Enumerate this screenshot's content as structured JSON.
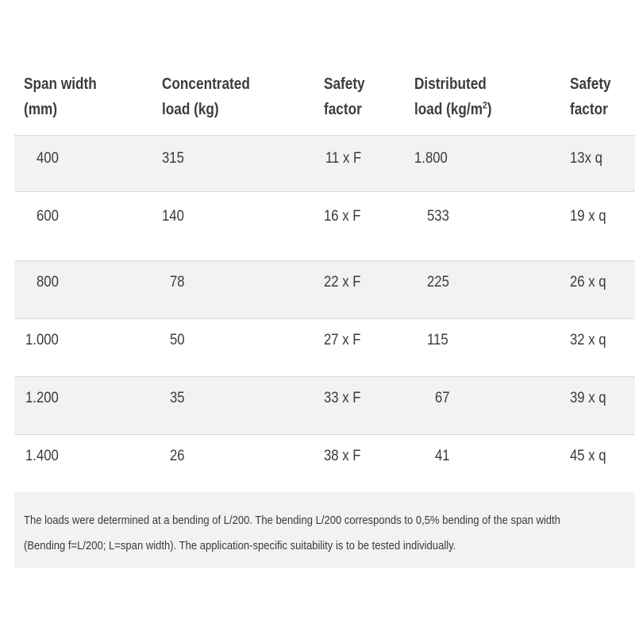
{
  "table": {
    "headers": {
      "span_width": [
        "Span width",
        "(mm)"
      ],
      "concentrated_load": [
        "Concentrated",
        "load (kg)"
      ],
      "safety_factor_1": [
        "Safety",
        "factor"
      ],
      "distributed_load": [
        "Distributed",
        "load (kg/m",
        "2",
        ")"
      ],
      "safety_factor_2": [
        "Safety",
        "factor"
      ]
    },
    "rows": [
      {
        "span": "400",
        "conc": "315",
        "sf1": "11 x F",
        "dist": "1.800",
        "sf2": "13x q"
      },
      {
        "span": "600",
        "conc": "140",
        "sf1": "16 x F",
        "dist": "533",
        "sf2": "19 x q"
      },
      {
        "span": "800",
        "conc": "78",
        "sf1": "22 x F",
        "dist": "225",
        "sf2": "26 x q"
      },
      {
        "span": "1.000",
        "conc": "50",
        "sf1": "27 x F",
        "dist": "115",
        "sf2": "32 x q"
      },
      {
        "span": "1.200",
        "conc": "35",
        "sf1": "33 x F",
        "dist": "67",
        "sf2": "39 x q"
      },
      {
        "span": "1.400",
        "conc": "26",
        "sf1": "38 x F",
        "dist": "41",
        "sf2": "45 x q"
      }
    ]
  },
  "note": {
    "line1": "The loads were determined at a bending of L/200. The bending L/200 corresponds to 0,5% bending of the span width",
    "line2": "(Bending f=L/200; L=span width). The application-specific suitability is to be tested individually."
  }
}
